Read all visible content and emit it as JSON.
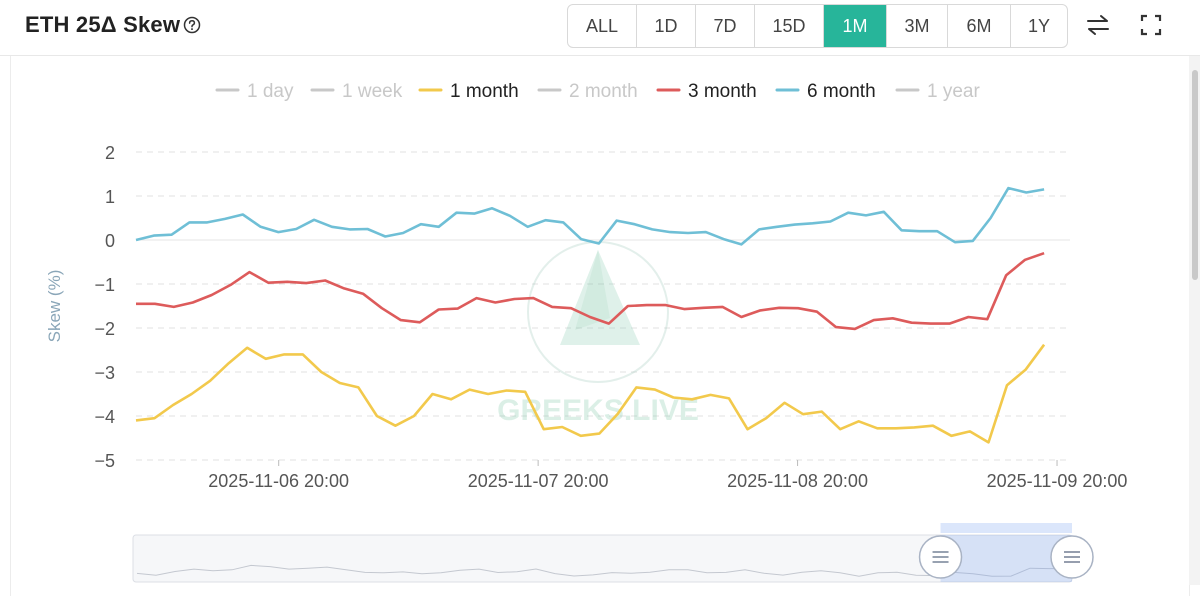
{
  "header": {
    "title": "ETH 25Δ Skew",
    "help_icon": "question-circle-icon",
    "timeframes": [
      "ALL",
      "1D",
      "7D",
      "15D",
      "1M",
      "3M",
      "6M",
      "1Y"
    ],
    "active_timeframe": "1M",
    "swap_icon": "swap-arrows-icon",
    "expand_icon": "fullscreen-icon"
  },
  "colors": {
    "accent": "#27b59a",
    "1 month": "#f2c94c",
    "3 month": "#dd5b5b",
    "6 month": "#6fbfd6",
    "inactive": "#c8c8c8"
  },
  "watermark": "GREEKS.LIVE",
  "chart_data": {
    "type": "line",
    "ylabel": "Skew (%)",
    "ylim": [
      -5,
      2
    ],
    "yticks": [
      2,
      1,
      0,
      -1,
      -2,
      -3,
      -4,
      -5
    ],
    "x_ticks": [
      "2025-11-06 20:00",
      "2025-11-07 20:00",
      "2025-11-08 20:00",
      "2025-11-09 20:00"
    ],
    "x_tick_index": [
      11,
      31,
      51,
      71
    ],
    "grid": true,
    "legend_position": "top-center",
    "legend": [
      {
        "name": "1 day",
        "active": false
      },
      {
        "name": "1 week",
        "active": false
      },
      {
        "name": "1 month",
        "active": true
      },
      {
        "name": "2 month",
        "active": false
      },
      {
        "name": "3 month",
        "active": true
      },
      {
        "name": "6 month",
        "active": true
      },
      {
        "name": "1 year",
        "active": false
      }
    ],
    "series": [
      {
        "name": "6 month",
        "values": [
          0.0,
          0.1,
          0.12,
          0.4,
          0.4,
          0.48,
          0.58,
          0.3,
          0.18,
          0.25,
          0.46,
          0.3,
          0.24,
          0.25,
          0.08,
          0.16,
          0.36,
          0.3,
          0.62,
          0.6,
          0.72,
          0.55,
          0.3,
          0.45,
          0.4,
          0.02,
          -0.08,
          0.44,
          0.36,
          0.24,
          0.18,
          0.16,
          0.18,
          0.02,
          -0.1,
          0.24,
          0.3,
          0.35,
          0.38,
          0.42,
          0.62,
          0.56,
          0.64,
          0.22,
          0.2,
          0.2,
          -0.05,
          -0.02,
          0.5,
          1.18,
          1.08,
          1.15
        ]
      },
      {
        "name": "3 month",
        "values": [
          -1.45,
          -1.45,
          -1.52,
          -1.42,
          -1.25,
          -1.02,
          -0.73,
          -0.97,
          -0.95,
          -0.98,
          -0.92,
          -1.1,
          -1.22,
          -1.55,
          -1.82,
          -1.87,
          -1.58,
          -1.56,
          -1.32,
          -1.42,
          -1.34,
          -1.32,
          -1.52,
          -1.55,
          -1.75,
          -1.9,
          -1.5,
          -1.48,
          -1.48,
          -1.57,
          -1.54,
          -1.52,
          -1.75,
          -1.6,
          -1.54,
          -1.55,
          -1.63,
          -1.98,
          -2.02,
          -1.82,
          -1.78,
          -1.88,
          -1.9,
          -1.9,
          -1.75,
          -1.8,
          -0.8,
          -0.45,
          -0.3
        ]
      },
      {
        "name": "1 month",
        "values": [
          -4.1,
          -4.05,
          -3.75,
          -3.5,
          -3.2,
          -2.8,
          -2.45,
          -2.7,
          -2.6,
          -2.6,
          -3.0,
          -3.25,
          -3.35,
          -4.0,
          -4.22,
          -4.0,
          -3.5,
          -3.62,
          -3.4,
          -3.5,
          -3.42,
          -3.45,
          -4.3,
          -4.25,
          -4.45,
          -4.4,
          -3.95,
          -3.35,
          -3.4,
          -3.58,
          -3.62,
          -3.52,
          -3.6,
          -4.3,
          -4.05,
          -3.7,
          -3.96,
          -3.9,
          -4.3,
          -4.12,
          -4.28,
          -4.28,
          -4.26,
          -4.22,
          -4.45,
          -4.35,
          -4.6,
          -3.3,
          -2.95,
          -2.38
        ]
      }
    ],
    "navigator": {
      "selected_start_fraction": 0.86,
      "selected_end_fraction": 1.0,
      "handle_icon": "drag-handle-icon"
    }
  }
}
